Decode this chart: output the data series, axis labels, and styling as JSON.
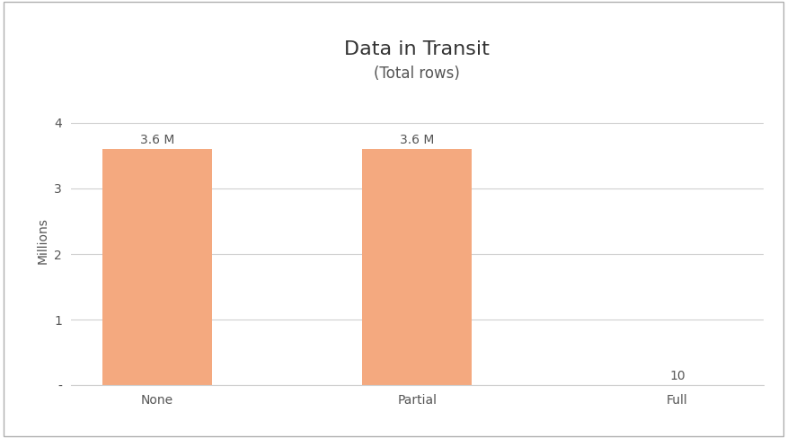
{
  "title": "Data in Transit",
  "subtitle": "(Total rows)",
  "categories": [
    "None",
    "Partial",
    "Full"
  ],
  "values": [
    3600000,
    3600000,
    10
  ],
  "bar_color": "#F4A97F",
  "ylabel": "Millions",
  "ylim": [
    0,
    4400000
  ],
  "yticks": [
    0,
    1000000,
    2000000,
    3000000,
    4000000
  ],
  "ytick_labels": [
    "-",
    "1",
    "2",
    "3",
    "4"
  ],
  "bar_labels": [
    "3.6 M",
    "3.6 M",
    "10"
  ],
  "title_fontsize": 16,
  "subtitle_fontsize": 12,
  "label_fontsize": 10,
  "axis_fontsize": 10,
  "background_color": "#ffffff",
  "grid_color": "#d0d0d0",
  "bar_width": 0.42,
  "border_color": "#c0c0c0",
  "text_color": "#555555"
}
